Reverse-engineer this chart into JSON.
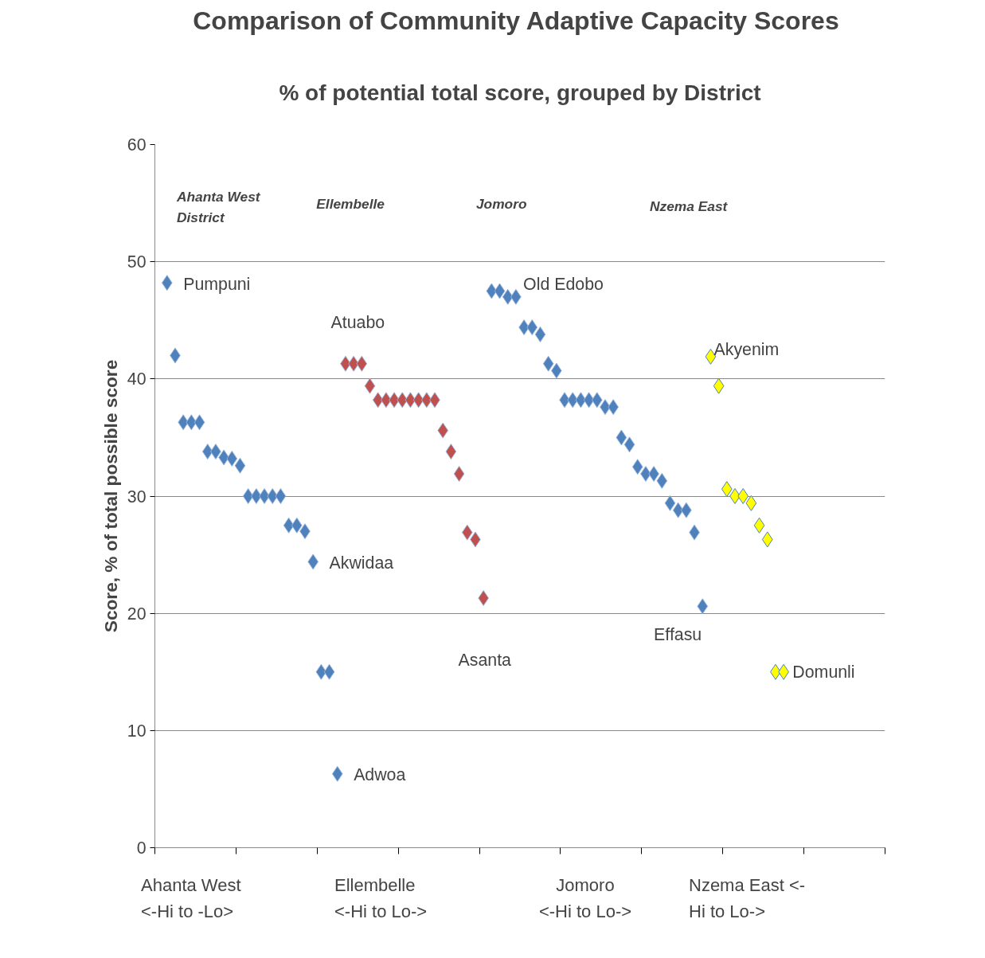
{
  "chart_data": {
    "type": "scatter",
    "title": "Comparison of Community Adaptive Capacity  Scores",
    "subtitle": "% of potential total score, grouped by District",
    "ylabel": "Score, % of total possible score",
    "categories": [
      null,
      null,
      null,
      null,
      null,
      null,
      null,
      null,
      null,
      null,
      null,
      null,
      null,
      null,
      null,
      null,
      null,
      null,
      null,
      null,
      null,
      null,
      null,
      null,
      null,
      null,
      null,
      null,
      null,
      null,
      null,
      null,
      null,
      null,
      null,
      null,
      null,
      null,
      null,
      null,
      null,
      null,
      null,
      null,
      null,
      null,
      null,
      null,
      null,
      null,
      null,
      null,
      null,
      null,
      null,
      null,
      null,
      null,
      null,
      null,
      null,
      null,
      null,
      null,
      null,
      null,
      null,
      null,
      null,
      null,
      null,
      null,
      null,
      null,
      null,
      null,
      null,
      null,
      null,
      null,
      null,
      null,
      null,
      null,
      null,
      null,
      null,
      null,
      null,
      null
    ],
    "series": [
      {
        "color": "#4f81bd",
        "values": [
          null,
          48.2,
          42,
          36.3,
          36.3,
          36.3,
          33.8,
          33.8,
          33.3,
          33.2,
          32.6,
          30,
          30,
          30,
          30,
          30,
          27.5,
          27.5,
          27,
          24.4,
          15,
          15,
          6.3,
          null,
          null,
          null,
          null,
          null,
          null,
          null,
          null,
          null,
          null,
          null,
          null,
          null,
          null,
          null,
          null,
          null,
          null,
          47.5,
          47.5,
          47,
          47,
          44.4,
          44.4,
          43.8,
          41.3,
          40.7,
          38.2,
          38.2,
          38.2,
          38.2,
          38.2,
          37.6,
          37.6,
          35,
          34.4,
          32.5,
          31.9,
          31.9,
          31.3,
          29.4,
          28.8,
          28.8,
          26.9,
          20.6,
          null,
          null,
          null,
          null,
          null,
          null,
          null,
          null,
          null,
          null,
          null,
          null,
          null,
          null,
          null,
          null,
          null,
          null,
          null,
          null,
          null,
          null
        ]
      },
      {
        "color": "#c0504d",
        "values": [
          null,
          null,
          null,
          null,
          null,
          null,
          null,
          null,
          null,
          null,
          null,
          null,
          null,
          null,
          null,
          null,
          null,
          null,
          null,
          null,
          null,
          null,
          null,
          41.3,
          41.3,
          41.3,
          39.4,
          38.2,
          38.2,
          38.2,
          38.2,
          38.2,
          38.2,
          38.2,
          38.2,
          35.6,
          33.8,
          31.9,
          26.9,
          26.3,
          21.3,
          null,
          null,
          null,
          null,
          null,
          null,
          null,
          null,
          null,
          null,
          null,
          null,
          null,
          null,
          null,
          null,
          null,
          null,
          null,
          null,
          null,
          null,
          null,
          null,
          null,
          null,
          null,
          null,
          null,
          null,
          null,
          null,
          null,
          null,
          null,
          null,
          null,
          null,
          null,
          null,
          null,
          null,
          null,
          null,
          null,
          null,
          null,
          null,
          null
        ]
      },
      {
        "color": "#ffff00",
        "values": [
          null,
          null,
          null,
          null,
          null,
          null,
          null,
          null,
          null,
          null,
          null,
          null,
          null,
          null,
          null,
          null,
          null,
          null,
          null,
          null,
          null,
          null,
          null,
          null,
          null,
          null,
          null,
          null,
          null,
          null,
          null,
          null,
          null,
          null,
          null,
          null,
          null,
          null,
          null,
          null,
          null,
          null,
          null,
          null,
          null,
          null,
          null,
          null,
          null,
          null,
          null,
          null,
          null,
          null,
          null,
          null,
          null,
          null,
          null,
          null,
          null,
          null,
          null,
          null,
          null,
          null,
          null,
          null,
          41.9,
          39.4,
          30.6,
          30,
          30,
          29.4,
          27.5,
          26.3,
          15,
          15,
          null,
          null,
          null,
          null,
          null,
          null,
          null,
          null,
          null,
          null,
          null,
          null
        ]
      }
    ],
    "ylim": [
      0,
      60
    ],
    "yticks": [
      0,
      10,
      20,
      30,
      40,
      50,
      60
    ],
    "grid": "y",
    "marker": "diamond",
    "annotations": [
      "Ahanta West\nDistrict",
      "Ellembelle",
      "Jomoro",
      "Nzema East",
      "Pumpuni",
      "Atuabo",
      "Old Edobo",
      "Akyenim",
      "Akwidaa",
      "Asanta",
      "Effasu",
      "Domunli",
      "Adwoa",
      "Ahanta West\n<-Hi to -Lo>",
      "Ellembelle\n<-Hi to Lo->",
      "Jomoro\n<-Hi   to   Lo->",
      "Nzema East <-\nHi to Lo->"
    ]
  }
}
